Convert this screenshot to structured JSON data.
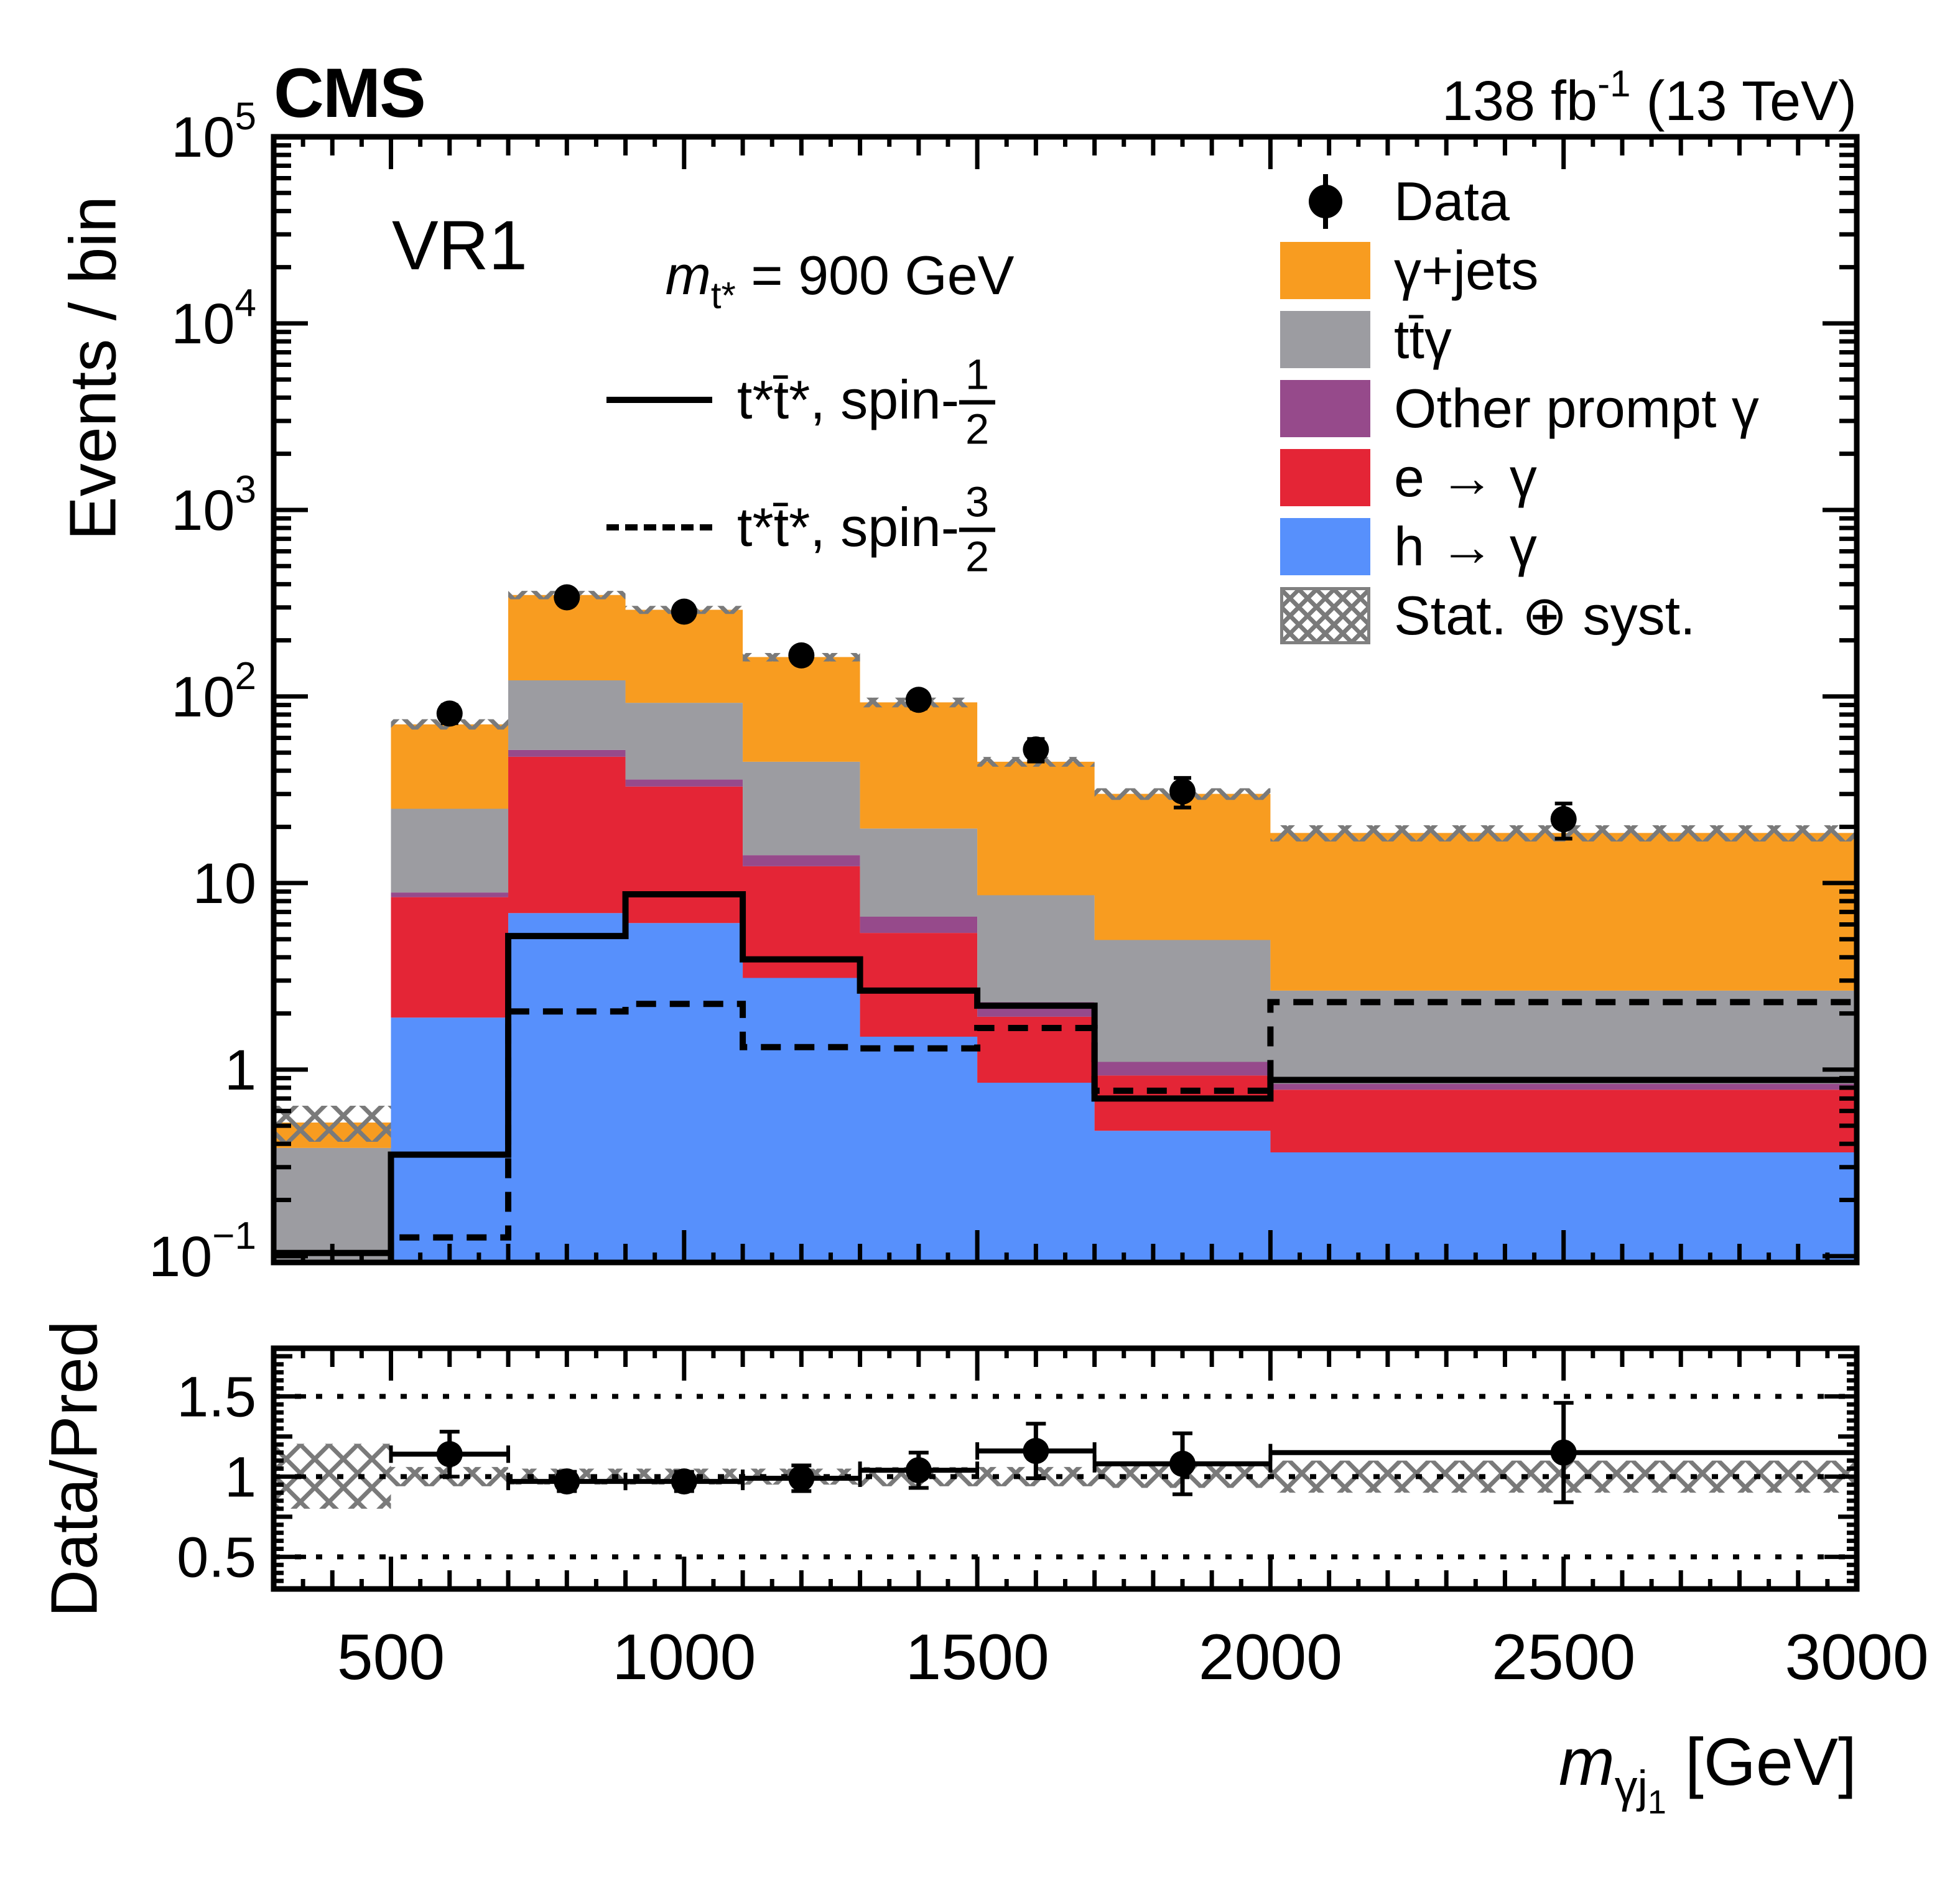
{
  "header": {
    "experiment": "CMS",
    "lumi_prefix": "138 fb",
    "lumi_sup": "-1",
    "lumi_suffix": " (13 TeV)"
  },
  "labels": {
    "region": "VR1",
    "mass_sym": "m",
    "mass_sub": "t*",
    "mass_rest": " = 900 GeV",
    "y_main": "Events / bin",
    "y_ratio": "Data/Pred",
    "x_sym": "m",
    "x_sub": "γj",
    "x_subsub": "1",
    "x_rest": " [GeV]"
  },
  "signal_legend": [
    {
      "style": "solid",
      "prefix": "t*t̄*, spin-",
      "num": "1",
      "den": "2"
    },
    {
      "style": "dashed",
      "prefix": "t*t̄*, spin-",
      "num": "3",
      "den": "2"
    }
  ],
  "legend": [
    {
      "type": "marker",
      "label": "Data"
    },
    {
      "type": "fill",
      "color": "#F89C20",
      "label": "γ+jets"
    },
    {
      "type": "fill",
      "color": "#9C9CA1",
      "label": "tt̄γ"
    },
    {
      "type": "fill",
      "color": "#964A8B",
      "label": "Other prompt γ"
    },
    {
      "type": "fill",
      "color": "#E42536",
      "label": "e → γ"
    },
    {
      "type": "fill",
      "color": "#5790FC",
      "label": "h → γ"
    },
    {
      "type": "hatch",
      "label": "Stat. ⊕ syst."
    }
  ],
  "chart_data": {
    "type": "stacked_histogram_with_ratio",
    "title": "CMS VR1, m_t* = 900 GeV",
    "xlabel": "m_gamma-j1 [GeV]",
    "ylabel": "Events / bin",
    "ratio_ylabel": "Data/Pred",
    "yscale": "log",
    "xlim": [
      300,
      3000
    ],
    "ylim": [
      0.0925,
      100000
    ],
    "x_edges": [
      300,
      500,
      700,
      900,
      1100,
      1300,
      1500,
      1700,
      2000,
      3000
    ],
    "xticks_major": [
      500,
      1000,
      1500,
      2000,
      2500,
      3000
    ],
    "yticks_decades": [
      5,
      4,
      3,
      2,
      1,
      0,
      -1
    ],
    "series": [
      {
        "name": "h → γ",
        "color": "#5790FC",
        "values": [
          0,
          1.9,
          6.9,
          6.1,
          3.1,
          1.5,
          0.85,
          0.47,
          0.36
        ]
      },
      {
        "name": "e → γ",
        "color": "#E42536",
        "values": [
          0,
          6.5,
          40.6,
          26.8,
          9.2,
          3.9,
          1.07,
          0.46,
          0.42
        ]
      },
      {
        "name": "Other prompt γ",
        "color": "#964A8B",
        "values": [
          0,
          0.5,
          4.2,
          3.0,
          1.8,
          1.2,
          0.38,
          0.17,
          0.06
        ]
      },
      {
        "name": "tt̄γ",
        "color": "#9C9CA1",
        "values": [
          0.38,
          16.1,
          70.3,
          56.6,
          30.6,
          13.0,
          6.3,
          3.85,
          1.81
        ]
      },
      {
        "name": "γ+jets",
        "color": "#F89C20",
        "values": [
          0.14,
          45.9,
          228.0,
          199.0,
          118.0,
          73.4,
          36.1,
          25.1,
          15.9
        ]
      }
    ],
    "totals": [
      0.52,
      70.9,
      350.0,
      291.5,
      162.7,
      93.0,
      44.7,
      30.05,
      18.55
    ],
    "uncertainty_band": {
      "label": "Stat. ⊕ syst.",
      "lo": [
        0.41,
        66.5,
        332,
        277,
        154,
        87.5,
        42.0,
        27.9,
        16.7
      ],
      "hi": [
        0.64,
        75.5,
        368,
        306,
        171,
        98.6,
        47.4,
        32.2,
        20.4
      ]
    },
    "signals": [
      {
        "name": "t*t̄*, spin-1/2",
        "style": "solid",
        "values": [
          0.104,
          0.35,
          5.2,
          8.7,
          3.9,
          2.65,
          2.2,
          0.7,
          0.88
        ]
      },
      {
        "name": "t*t̄*, spin-3/2",
        "style": "dashed",
        "values": [
          null,
          0.126,
          2.05,
          2.25,
          1.32,
          1.3,
          1.67,
          0.77,
          2.3
        ]
      }
    ],
    "data_points": {
      "name": "Data",
      "x": [
        600,
        800,
        1000,
        1200,
        1400,
        1600,
        1850,
        2500
      ],
      "y": [
        81,
        340,
        285,
        166,
        96,
        52,
        31,
        22
      ],
      "yerr": [
        9.0,
        18.4,
        16.9,
        12.9,
        9.8,
        7.2,
        5.6,
        4.7
      ]
    },
    "ratio": {
      "ylim": [
        0.3,
        1.8
      ],
      "yticks": [
        0.5,
        1.0,
        1.5
      ],
      "hlines": [
        0.5,
        1.0,
        1.5
      ],
      "x": [
        600,
        800,
        1000,
        1200,
        1400,
        1600,
        1850,
        2500
      ],
      "values": [
        1.14,
        0.97,
        0.97,
        0.99,
        1.04,
        1.16,
        1.08,
        1.15
      ],
      "yerr": [
        0.14,
        0.06,
        0.06,
        0.08,
        0.11,
        0.17,
        0.19,
        0.31
      ],
      "band_lo": [
        0.8,
        0.94,
        0.95,
        0.95,
        0.95,
        0.94,
        0.94,
        0.93,
        0.9
      ],
      "band_hi": [
        1.205,
        1.06,
        1.05,
        1.05,
        1.05,
        1.06,
        1.06,
        1.07,
        1.1
      ]
    }
  }
}
